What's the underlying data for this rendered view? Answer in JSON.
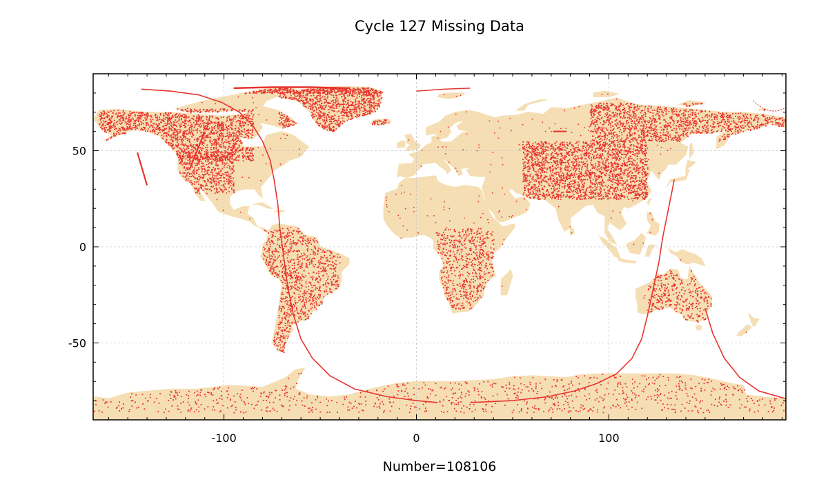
{
  "title": "Cycle 127 Missing Data",
  "xlabel": "Number=108106",
  "colors": {
    "land": "#f5deb3",
    "missing": "#e8332d",
    "grid": "#c8c8c8",
    "frame": "#000000",
    "background": "#ffffff"
  },
  "chart_data": {
    "type": "scatter",
    "title": "Cycle 127 Missing Data",
    "xlabel": "Number=108106",
    "ylabel": "",
    "xlim": [
      -168,
      192
    ],
    "ylim": [
      -90,
      90
    ],
    "xticks": [
      -100,
      0,
      100
    ],
    "yticks": [
      -50,
      0,
      50
    ],
    "xtick_labels": [
      "-100",
      "0",
      "100"
    ],
    "ytick_labels": [
      "-50",
      "0",
      "50"
    ],
    "grid": true,
    "basemap": "world land mass",
    "missing_count": 108106,
    "orbit_track": [
      [
        -143,
        82
      ],
      [
        -128,
        81
      ],
      [
        -113,
        79
      ],
      [
        -101,
        75
      ],
      [
        -92,
        70
      ],
      [
        -85,
        63
      ],
      [
        -80,
        55
      ],
      [
        -76,
        45
      ],
      [
        -74,
        35
      ],
      [
        -72,
        22
      ],
      [
        -71,
        10
      ],
      [
        -69,
        -5
      ],
      [
        -67,
        -20
      ],
      [
        -64,
        -35
      ],
      [
        -60,
        -48
      ],
      [
        -54,
        -58
      ],
      [
        -45,
        -67
      ],
      [
        -32,
        -74
      ],
      [
        -15,
        -78
      ],
      [
        0,
        -80
      ],
      [
        11,
        -81
      ]
    ],
    "orbit_track_2": [
      [
        28,
        -81
      ],
      [
        50,
        -80
      ],
      [
        68,
        -78
      ],
      [
        82,
        -75
      ],
      [
        94,
        -71
      ],
      [
        104,
        -66
      ],
      [
        112,
        -58
      ],
      [
        117,
        -48
      ],
      [
        120,
        -36
      ],
      [
        123,
        -22
      ],
      [
        126,
        -8
      ],
      [
        128,
        5
      ],
      [
        131,
        20
      ],
      [
        133,
        30
      ],
      [
        134,
        35
      ]
    ],
    "orbit_track_3": [
      [
        150,
        -32
      ],
      [
        154,
        -45
      ],
      [
        160,
        -58
      ],
      [
        168,
        -68
      ],
      [
        178,
        -75
      ],
      [
        192,
        -79
      ]
    ],
    "short_tracks": [
      [
        [
          -145,
          49
        ],
        [
          -140,
          32
        ]
      ],
      [
        [
          -110,
          60
        ],
        [
          -118,
          40
        ]
      ],
      [
        [
          71,
          60
        ],
        [
          78,
          60
        ]
      ]
    ],
    "missing_clusters": [
      {
        "region": "Alaska / Canada",
        "x": [
          -165,
          -85
        ],
        "y": [
          45,
          72
        ]
      },
      {
        "region": "Western USA",
        "x": [
          -125,
          -95
        ],
        "y": [
          28,
          50
        ]
      },
      {
        "region": "Greenland coast",
        "x": [
          -72,
          -12
        ],
        "y": [
          60,
          83
        ]
      },
      {
        "region": "Arctic Ocean edge",
        "x": [
          -95,
          -10
        ],
        "y": [
          80,
          83
        ]
      },
      {
        "region": "Andes / South America",
        "x": [
          -80,
          -40
        ],
        "y": [
          -55,
          10
        ]
      },
      {
        "region": "Central Africa",
        "x": [
          10,
          40
        ],
        "y": [
          -32,
          10
        ]
      },
      {
        "region": "Central Asia",
        "x": [
          55,
          120
        ],
        "y": [
          25,
          55
        ]
      },
      {
        "region": "Siberia",
        "x": [
          90,
          192
        ],
        "y": [
          55,
          75
        ]
      },
      {
        "region": "Australia coast",
        "x": [
          120,
          155
        ],
        "y": [
          -40,
          -12
        ]
      },
      {
        "region": "Antarctica coast",
        "x": [
          -168,
          192
        ],
        "y": [
          -86,
          -65
        ]
      }
    ]
  }
}
